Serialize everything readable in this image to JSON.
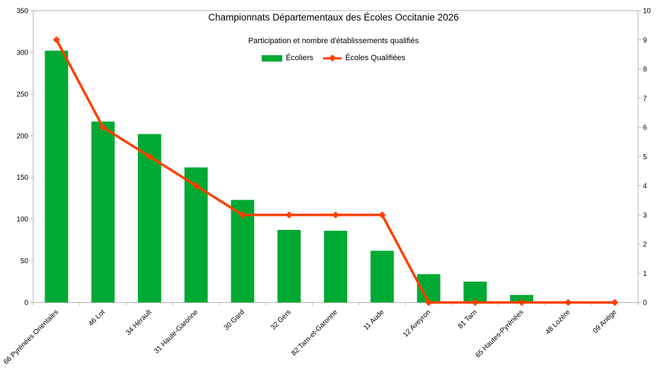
{
  "title": "Championnats Départementaux des Écoles Occitanie 2026",
  "subtitle": "Participation et nombre d'établissements qualifiés",
  "legend": [
    {
      "label": "Écoliers",
      "type": "bar"
    },
    {
      "label": "Écoles Qualifiées",
      "type": "line"
    }
  ],
  "colors": {
    "bar": "#00A933",
    "line": "#FF4000",
    "axis": "#B3B3B3",
    "text": "#000000",
    "background": "#FFFFFF"
  },
  "chart_data": {
    "type": "bar+line combo",
    "title": "Championnats Départementaux des Écoles Occitanie 2026",
    "subtitle": "Participation et nombre d'établissements qualifiés",
    "categories": [
      "66 Pyrénées Orientales",
      "46 Lot",
      "34 Hérault",
      "31 Haute-Garonne",
      "30 Gard",
      "32 Gers",
      "82 Tarn-et-Garonne",
      "11 Aude",
      "12 Aveyron",
      "81 Tarn",
      "65 Hautes-Pyrénées",
      "48 Lozère",
      "09 Ariège"
    ],
    "series": [
      {
        "name": "Écoliers",
        "type": "bar",
        "axis": "left",
        "color": "#00A933",
        "values": [
          302,
          217,
          202,
          162,
          123,
          87,
          86,
          62,
          34,
          25,
          9,
          0,
          0
        ]
      },
      {
        "name": "Écoles Qualifiées",
        "type": "line",
        "axis": "right",
        "color": "#FF4000",
        "marker": "diamond",
        "values": [
          9,
          6,
          5,
          4,
          3,
          3,
          3,
          3,
          0,
          0,
          0,
          0,
          0
        ]
      }
    ],
    "left_axis": {
      "min": 0,
      "max": 350,
      "step": 50,
      "ticks": [
        0,
        50,
        100,
        150,
        200,
        250,
        300,
        350
      ]
    },
    "right_axis": {
      "min": 0,
      "max": 10,
      "step": 1,
      "ticks": [
        0,
        1,
        2,
        3,
        4,
        5,
        6,
        7,
        8,
        9,
        10
      ]
    },
    "grid": false,
    "legend_position": "top-center",
    "x_labels_rotated_degrees": 45
  }
}
